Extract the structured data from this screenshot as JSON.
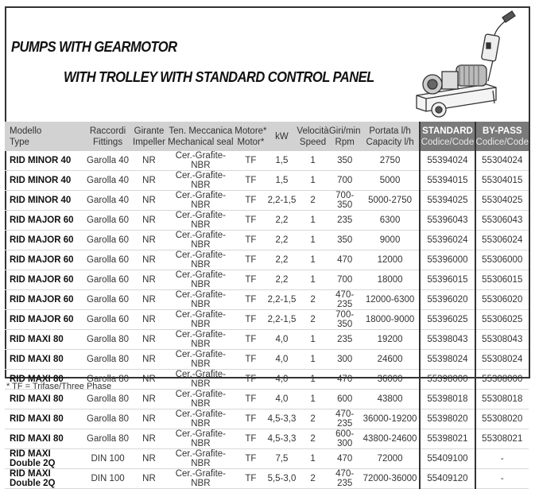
{
  "title_line1": "PUMPS WITH GEARMOTOR",
  "title_line2": "WITH TROLLEY WITH STANDARD CONTROL PANEL",
  "headers": [
    [
      "Modello",
      "Type"
    ],
    [
      "Raccordi",
      "Fittings"
    ],
    [
      "Girante",
      "Impeller"
    ],
    [
      "Ten. Meccanica",
      "Mechanical seal"
    ],
    [
      "Motore*",
      "Motor*"
    ],
    [
      "kW",
      ""
    ],
    [
      "Velocità",
      "Speed"
    ],
    [
      "Giri/min",
      "Rpm"
    ],
    [
      "Portata l/h",
      "Capacity l/h"
    ],
    [
      "STANDARD",
      "Codice/Code"
    ],
    [
      "BY-PASS",
      "Codice/Code"
    ]
  ],
  "rows": [
    [
      "RID MINOR 40",
      "Garolla 40",
      "NR",
      "Cer.-Grafite-NBR",
      "TF",
      "1,5",
      "1",
      "350",
      "2750",
      "55394024",
      "55304024"
    ],
    [
      "RID MINOR 40",
      "Garolla 40",
      "NR",
      "Cer.-Grafite-NBR",
      "TF",
      "1,5",
      "1",
      "700",
      "5000",
      "55394015",
      "55304015"
    ],
    [
      "RID MINOR 40",
      "Garolla 40",
      "NR",
      "Cer.-Grafite-NBR",
      "TF",
      "2,2-1,5",
      "2",
      "700-350",
      "5000-2750",
      "55394025",
      "55304025"
    ],
    [
      "RID MAJOR 60",
      "Garolla 60",
      "NR",
      "Cer.-Grafite-NBR",
      "TF",
      "2,2",
      "1",
      "235",
      "6300",
      "55396043",
      "55306043"
    ],
    [
      "RID MAJOR 60",
      "Garolla 60",
      "NR",
      "Cer.-Grafite-NBR",
      "TF",
      "2,2",
      "1",
      "350",
      "9000",
      "55396024",
      "55306024"
    ],
    [
      "RID MAJOR 60",
      "Garolla 60",
      "NR",
      "Cer.-Grafite-NBR",
      "TF",
      "2,2",
      "1",
      "470",
      "12000",
      "55396000",
      "55306000"
    ],
    [
      "RID MAJOR 60",
      "Garolla 60",
      "NR",
      "Cer.-Grafite-NBR",
      "TF",
      "2,2",
      "1",
      "700",
      "18000",
      "55396015",
      "55306015"
    ],
    [
      "RID MAJOR 60",
      "Garolla 60",
      "NR",
      "Cer.-Grafite-NBR",
      "TF",
      "2,2-1,5",
      "2",
      "470-235",
      "12000-6300",
      "55396020",
      "55306020"
    ],
    [
      "RID MAJOR 60",
      "Garolla 60",
      "NR",
      "Cer.-Grafite-NBR",
      "TF",
      "2,2-1,5",
      "2",
      "700-350",
      "18000-9000",
      "55396025",
      "55306025"
    ],
    [
      "RID MAXI 80",
      "Garolla 80",
      "NR",
      "Cer.-Grafite-NBR",
      "TF",
      "4,0",
      "1",
      "235",
      "19200",
      "55398043",
      "55308043"
    ],
    [
      "RID MAXI 80",
      "Garolla 80",
      "NR",
      "Cer.-Grafite-NBR",
      "TF",
      "4,0",
      "1",
      "300",
      "24600",
      "55398024",
      "55308024"
    ],
    [
      "RID MAXI 80",
      "Garolla 80",
      "NR",
      "Cer.-Grafite-NBR",
      "TF",
      "4,0",
      "1",
      "470",
      "36000",
      "55398000",
      "55308000"
    ],
    [
      "RID MAXI 80",
      "Garolla 80",
      "NR",
      "Cer.-Grafite-NBR",
      "TF",
      "4,0",
      "1",
      "600",
      "43800",
      "55398018",
      "55308018"
    ],
    [
      "RID MAXI 80",
      "Garolla 80",
      "NR",
      "Cer.-Grafite-NBR",
      "TF",
      "4,5-3,3",
      "2",
      "470-235",
      "36000-19200",
      "55398020",
      "55308020"
    ],
    [
      "RID MAXI 80",
      "Garolla 80",
      "NR",
      "Cer.-Grafite-NBR",
      "TF",
      "4,5-3,3",
      "2",
      "600-300",
      "43800-24600",
      "55398021",
      "55308021"
    ],
    [
      "RID MAXI Double 2Q",
      "DIN 100",
      "NR",
      "Cer.-Grafite-NBR",
      "TF",
      "7,5",
      "1",
      "470",
      "72000",
      "55409100",
      "-"
    ],
    [
      "RID MAXI Double 2Q",
      "DIN 100",
      "NR",
      "Cer.-Grafite-NBR",
      "TF",
      "5,5-3,0",
      "2",
      "470-235",
      "72000-36000",
      "55409120",
      "-"
    ]
  ],
  "footnote": "* TF = Trifase/Three Phase",
  "image": "pump-on-trolley-illustration",
  "colors": {
    "header_bg": "#d2d2d2",
    "code_header_bg": "#7a7a7a"
  }
}
